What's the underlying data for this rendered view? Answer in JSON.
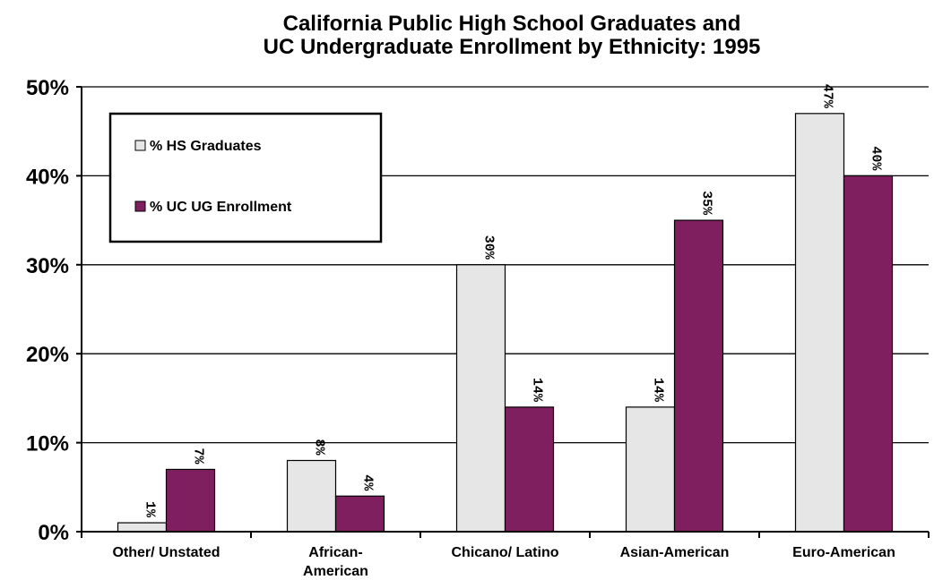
{
  "chart_data": {
    "type": "bar",
    "title": [
      "California Public High School Graduates and",
      "UC Undergraduate Enrollment by  Ethnicity: 1995"
    ],
    "categories": [
      [
        "Other/ Unstated"
      ],
      [
        "African-",
        "American"
      ],
      [
        "Chicano/ Latino"
      ],
      [
        "Asian-American"
      ],
      [
        "Euro-American"
      ]
    ],
    "series": [
      {
        "name": "% HS Graduates",
        "color": "#e6e6e6",
        "values": [
          1,
          8,
          30,
          14,
          47
        ],
        "labels": [
          "1%",
          "8%",
          "30%",
          "14%",
          "47%"
        ]
      },
      {
        "name": "% UC UG Enrollment",
        "color": "#7f1f5f",
        "values": [
          7,
          4,
          14,
          35,
          40
        ],
        "labels": [
          "7%",
          "4%",
          "14%",
          "35%",
          "40%"
        ]
      }
    ],
    "ylim": [
      0,
      50
    ],
    "yticks": [
      "0%",
      "10%",
      "20%",
      "30%",
      "40%",
      "50%"
    ],
    "grid": true,
    "legend": "top-left"
  }
}
